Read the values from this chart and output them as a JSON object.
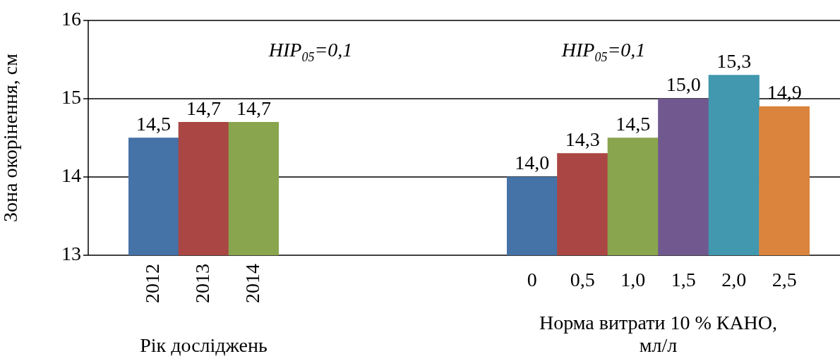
{
  "chart_data": [
    {
      "type": "bar",
      "xlabel": "Рік досліджень",
      "ylabel": "Зона окорінення, см",
      "categories": [
        "2012",
        "2013",
        "2014"
      ],
      "values": [
        14.5,
        14.7,
        14.7
      ],
      "colors": [
        "#4572a7",
        "#aa4643",
        "#89a54e"
      ],
      "value_labels": [
        "14,5",
        "14,7",
        "14,7"
      ],
      "ylim": [
        13,
        16
      ],
      "yticks": [
        13,
        14,
        15,
        16
      ],
      "grid": "y",
      "legend": false,
      "annotations": [
        "HIP$_{05}$=0,1"
      ]
    },
    {
      "type": "bar",
      "xlabel": "Норма витрати 10 % КАНО, мл/л",
      "categories": [
        "0",
        "0,5",
        "1,0",
        "1,5",
        "2,0",
        "2,5"
      ],
      "values": [
        14.0,
        14.3,
        14.5,
        15.0,
        15.3,
        14.9
      ],
      "colors": [
        "#4572a7",
        "#aa4643",
        "#89a54e",
        "#71588f",
        "#4198af",
        "#db843d"
      ],
      "value_labels": [
        "14,0",
        "14,3",
        "14,5",
        "15,0",
        "15,3",
        "14,9"
      ],
      "ylim": [
        13,
        16
      ],
      "yticks": [
        13,
        14,
        15,
        16
      ],
      "grid": "y",
      "legend": false,
      "tick_labels": "x",
      "annotations": [
        "HIP$_{05}$=0,1"
      ]
    }
  ]
}
